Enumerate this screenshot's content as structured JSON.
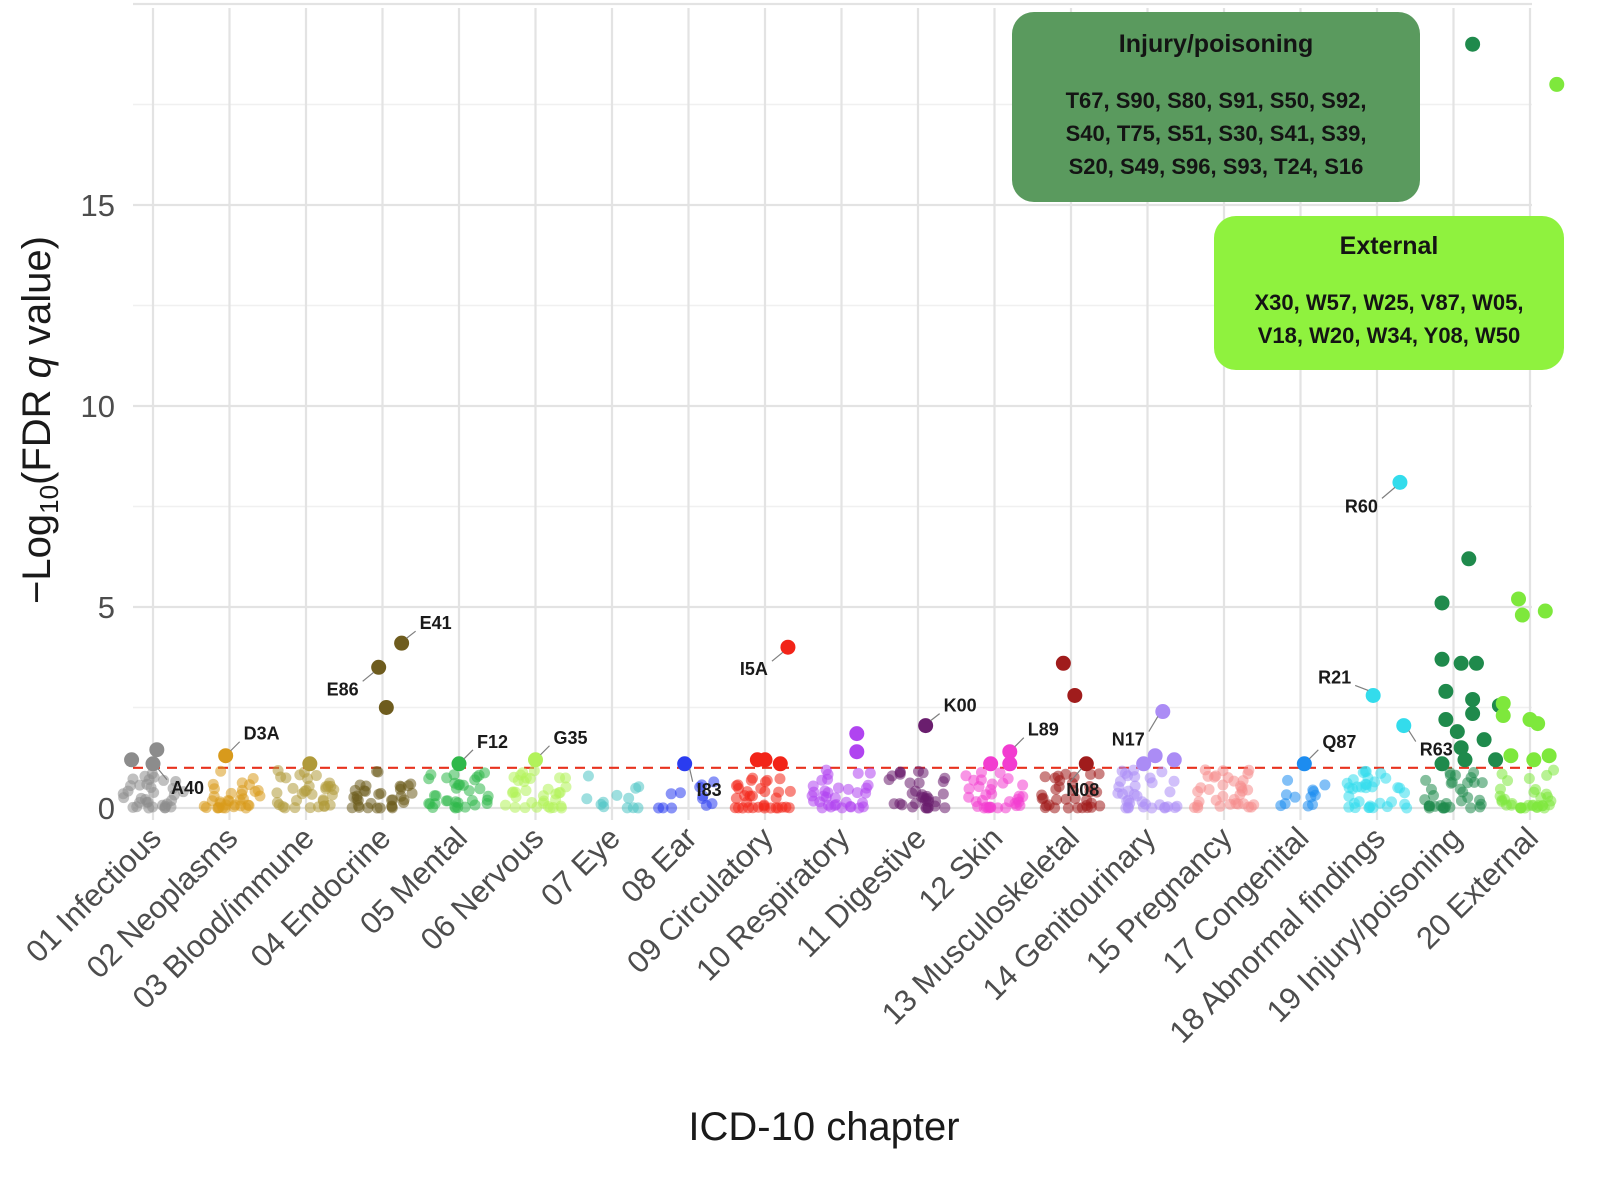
{
  "chart_data": {
    "type": "scatter",
    "title": "",
    "xlabel": "ICD-10 chapter",
    "ylabel": {
      "prefix": "−Log",
      "subscript": "10",
      "body": "(FDR ",
      "italic": "q",
      "suffix": " value)"
    },
    "ylim": [
      0,
      20
    ],
    "yticks": [
      0,
      5,
      10,
      15
    ],
    "threshold": 1.0,
    "threshold_color": "#e8321e",
    "grid": true,
    "categories": [
      {
        "label": "01 Infectious",
        "color": "#8c8c8c"
      },
      {
        "label": "02 Neoplasms",
        "color": "#d89a1c"
      },
      {
        "label": "03 Blood/immune",
        "color": "#b09a3a"
      },
      {
        "label": "04 Endocrine",
        "color": "#6e5c1e"
      },
      {
        "label": "05 Mental",
        "color": "#2fb84a"
      },
      {
        "label": "06 Nervous",
        "color": "#b2f25a"
      },
      {
        "label": "07 Eye",
        "color": "#4ec4c4"
      },
      {
        "label": "08 Ear",
        "color": "#2a3cf0"
      },
      {
        "label": "09 Circulatory",
        "color": "#f22418"
      },
      {
        "label": "10 Respiratory",
        "color": "#b044f0"
      },
      {
        "label": "11 Digestive",
        "color": "#6a1e6e"
      },
      {
        "label": "12 Skin",
        "color": "#f23cd0"
      },
      {
        "label": "13 Musculoskeletal",
        "color": "#a01c1c"
      },
      {
        "label": "14 Genitourinary",
        "color": "#ab8cf5"
      },
      {
        "label": "15 Pregnancy",
        "color": "#f58c8c"
      },
      {
        "label": "17 Congenital",
        "color": "#1c8cf0"
      },
      {
        "label": "18 Abnormal findings",
        "color": "#33dcec"
      },
      {
        "label": "19 Injury/poisoning",
        "color": "#1f8a4c"
      },
      {
        "label": "20 External",
        "color": "#7ee83c"
      }
    ],
    "highlighted": [
      {
        "cat": 0,
        "offset": -0.28,
        "y": 1.2
      },
      {
        "cat": 0,
        "offset": 0.05,
        "y": 1.45
      },
      {
        "cat": 0,
        "offset": 0.0,
        "y": 1.1,
        "code": "A40"
      },
      {
        "cat": 1,
        "offset": -0.05,
        "y": 1.3,
        "code": "D3A"
      },
      {
        "cat": 2,
        "offset": 0.05,
        "y": 1.1
      },
      {
        "cat": 3,
        "offset": -0.05,
        "y": 3.5,
        "code": "E86"
      },
      {
        "cat": 3,
        "offset": 0.25,
        "y": 4.1,
        "code": "E41"
      },
      {
        "cat": 3,
        "offset": 0.05,
        "y": 2.5
      },
      {
        "cat": 4,
        "offset": 0.0,
        "y": 1.1,
        "code": "F12"
      },
      {
        "cat": 5,
        "offset": 0.0,
        "y": 1.2,
        "code": "G35"
      },
      {
        "cat": 7,
        "offset": -0.05,
        "y": 1.1,
        "code": "I83"
      },
      {
        "cat": 8,
        "offset": 0.3,
        "y": 4.0,
        "code": "I5A"
      },
      {
        "cat": 8,
        "offset": -0.1,
        "y": 1.2
      },
      {
        "cat": 8,
        "offset": 0.0,
        "y": 1.2
      },
      {
        "cat": 8,
        "offset": 0.2,
        "y": 1.1
      },
      {
        "cat": 9,
        "offset": 0.2,
        "y": 1.85
      },
      {
        "cat": 9,
        "offset": 0.2,
        "y": 1.4
      },
      {
        "cat": 10,
        "offset": 0.1,
        "y": 2.05,
        "code": "K00"
      },
      {
        "cat": 11,
        "offset": 0.2,
        "y": 1.4,
        "code": "L89"
      },
      {
        "cat": 11,
        "offset": -0.05,
        "y": 1.1
      },
      {
        "cat": 11,
        "offset": 0.2,
        "y": 1.1
      },
      {
        "cat": 12,
        "offset": -0.1,
        "y": 3.6
      },
      {
        "cat": 12,
        "offset": 0.05,
        "y": 2.8
      },
      {
        "cat": 12,
        "offset": 0.2,
        "y": 1.1,
        "code": "N08"
      },
      {
        "cat": 13,
        "offset": 0.2,
        "y": 2.4,
        "code": "N17"
      },
      {
        "cat": 13,
        "offset": -0.05,
        "y": 1.1
      },
      {
        "cat": 13,
        "offset": 0.1,
        "y": 1.3
      },
      {
        "cat": 13,
        "offset": 0.35,
        "y": 1.2
      },
      {
        "cat": 15,
        "offset": 0.05,
        "y": 1.1,
        "code": "Q87"
      },
      {
        "cat": 16,
        "offset": 0.3,
        "y": 8.1,
        "code": "R60"
      },
      {
        "cat": 16,
        "offset": -0.05,
        "y": 2.8,
        "code": "R21"
      },
      {
        "cat": 16,
        "offset": 0.35,
        "y": 2.05,
        "code": "R63"
      },
      {
        "cat": 17,
        "offset": 0.25,
        "y": 19.0
      },
      {
        "cat": 17,
        "offset": 0.2,
        "y": 6.2
      },
      {
        "cat": 17,
        "offset": -0.15,
        "y": 5.1
      },
      {
        "cat": 17,
        "offset": -0.15,
        "y": 3.7
      },
      {
        "cat": 17,
        "offset": 0.1,
        "y": 3.6
      },
      {
        "cat": 17,
        "offset": 0.3,
        "y": 3.6
      },
      {
        "cat": 17,
        "offset": -0.1,
        "y": 2.9
      },
      {
        "cat": 17,
        "offset": 0.25,
        "y": 2.7
      },
      {
        "cat": 17,
        "offset": 0.6,
        "y": 2.55
      },
      {
        "cat": 17,
        "offset": 0.25,
        "y": 2.35
      },
      {
        "cat": 17,
        "offset": -0.1,
        "y": 2.2
      },
      {
        "cat": 17,
        "offset": 0.05,
        "y": 1.9
      },
      {
        "cat": 17,
        "offset": -0.15,
        "y": 1.1
      },
      {
        "cat": 17,
        "offset": 0.1,
        "y": 1.5
      },
      {
        "cat": 17,
        "offset": 0.4,
        "y": 1.7
      },
      {
        "cat": 17,
        "offset": 0.55,
        "y": 1.2
      },
      {
        "cat": 17,
        "offset": 0.15,
        "y": 1.2
      },
      {
        "cat": 18,
        "offset": 0.35,
        "y": 18.0
      },
      {
        "cat": 18,
        "offset": -0.35,
        "y": 2.6
      },
      {
        "cat": 18,
        "offset": -0.15,
        "y": 5.2
      },
      {
        "cat": 18,
        "offset": -0.1,
        "y": 4.8
      },
      {
        "cat": 18,
        "offset": 0.2,
        "y": 4.9
      },
      {
        "cat": 18,
        "offset": -0.35,
        "y": 2.3
      },
      {
        "cat": 18,
        "offset": 0.0,
        "y": 2.2
      },
      {
        "cat": 18,
        "offset": 0.1,
        "y": 2.1
      },
      {
        "cat": 18,
        "offset": -0.25,
        "y": 1.3
      },
      {
        "cat": 18,
        "offset": 0.05,
        "y": 1.2
      },
      {
        "cat": 18,
        "offset": 0.25,
        "y": 1.3
      }
    ],
    "annotation_boxes": [
      {
        "title": "Injury/poisoning",
        "lines": [
          "T67, S90, S80, S91, S50, S92,",
          "S40, T75, S51, S30, S41, S39,",
          "S20, S49, S96, S93, T24, S16"
        ],
        "color": "#5a9a5e"
      },
      {
        "title": "External",
        "lines": [
          "X30, W57, W25, V87, W05,",
          "V18, W20, W34, Y08, W50"
        ],
        "color": "#8ff23e"
      }
    ]
  }
}
